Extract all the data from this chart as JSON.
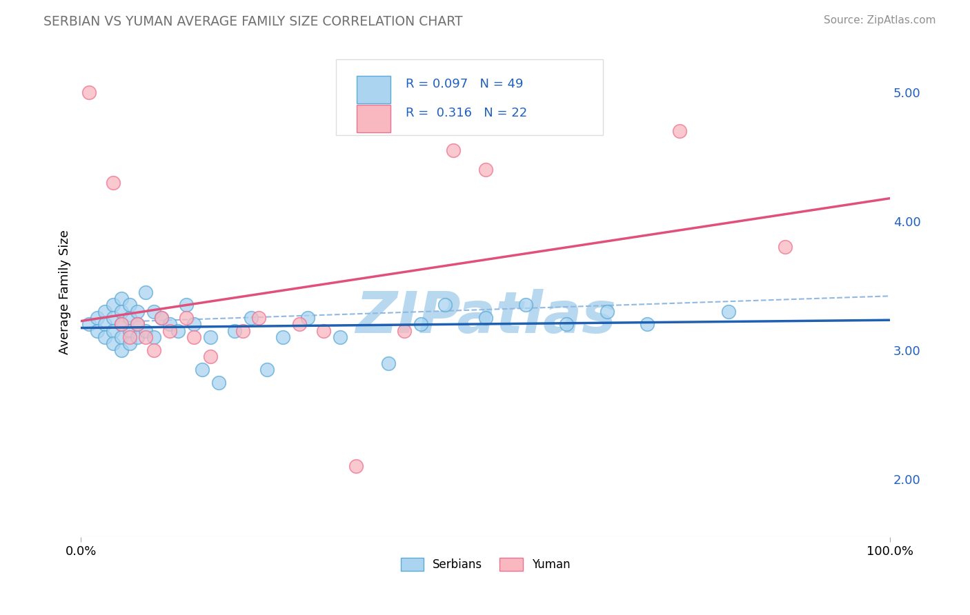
{
  "title": "SERBIAN VS YUMAN AVERAGE FAMILY SIZE CORRELATION CHART",
  "source_text": "Source: ZipAtlas.com",
  "ylabel": "Average Family Size",
  "xlim": [
    0.0,
    1.0
  ],
  "ylim": [
    1.55,
    5.35
  ],
  "yticks": [
    2.0,
    3.0,
    4.0,
    5.0
  ],
  "xticklabels": [
    "0.0%",
    "100.0%"
  ],
  "serbian_R": 0.097,
  "serbian_N": 49,
  "yuman_R": 0.316,
  "yuman_N": 22,
  "serbian_fill": "#aad4f0",
  "serbian_edge": "#5baad8",
  "yuman_fill": "#f9b8c0",
  "yuman_edge": "#f07090",
  "trend_serbian_color": "#2060b0",
  "trend_yuman_color": "#e0507a",
  "dashed_line_color": "#90b8e0",
  "background_color": "#ffffff",
  "grid_color": "#cccccc",
  "watermark": "ZIPatlas",
  "watermark_color": "#b8d8f0",
  "legend_R_color": "#2060c0",
  "title_color": "#707070",
  "source_color": "#909090",
  "serbian_x": [
    0.01,
    0.02,
    0.02,
    0.03,
    0.03,
    0.03,
    0.04,
    0.04,
    0.04,
    0.04,
    0.05,
    0.05,
    0.05,
    0.05,
    0.05,
    0.06,
    0.06,
    0.06,
    0.06,
    0.07,
    0.07,
    0.07,
    0.08,
    0.08,
    0.09,
    0.09,
    0.1,
    0.11,
    0.12,
    0.13,
    0.14,
    0.15,
    0.16,
    0.17,
    0.19,
    0.21,
    0.23,
    0.25,
    0.28,
    0.32,
    0.38,
    0.42,
    0.45,
    0.5,
    0.55,
    0.6,
    0.65,
    0.7,
    0.8
  ],
  "serbian_y": [
    3.2,
    3.25,
    3.15,
    3.3,
    3.2,
    3.1,
    3.35,
    3.25,
    3.15,
    3.05,
    3.4,
    3.3,
    3.2,
    3.1,
    3.0,
    3.35,
    3.25,
    3.15,
    3.05,
    3.3,
    3.2,
    3.1,
    3.45,
    3.15,
    3.3,
    3.1,
    3.25,
    3.2,
    3.15,
    3.35,
    3.2,
    2.85,
    3.1,
    2.75,
    3.15,
    3.25,
    2.85,
    3.1,
    3.25,
    3.1,
    2.9,
    3.2,
    3.35,
    3.25,
    3.35,
    3.2,
    3.3,
    3.2,
    3.3
  ],
  "yuman_x": [
    0.01,
    0.04,
    0.05,
    0.06,
    0.07,
    0.08,
    0.09,
    0.1,
    0.11,
    0.13,
    0.14,
    0.16,
    0.2,
    0.22,
    0.27,
    0.3,
    0.34,
    0.4,
    0.46,
    0.5,
    0.74,
    0.87
  ],
  "yuman_y": [
    5.0,
    4.3,
    3.2,
    3.1,
    3.2,
    3.1,
    3.0,
    3.25,
    3.15,
    3.25,
    3.1,
    2.95,
    3.15,
    3.25,
    3.2,
    3.15,
    2.1,
    3.15,
    4.55,
    4.4,
    4.7,
    3.8
  ]
}
